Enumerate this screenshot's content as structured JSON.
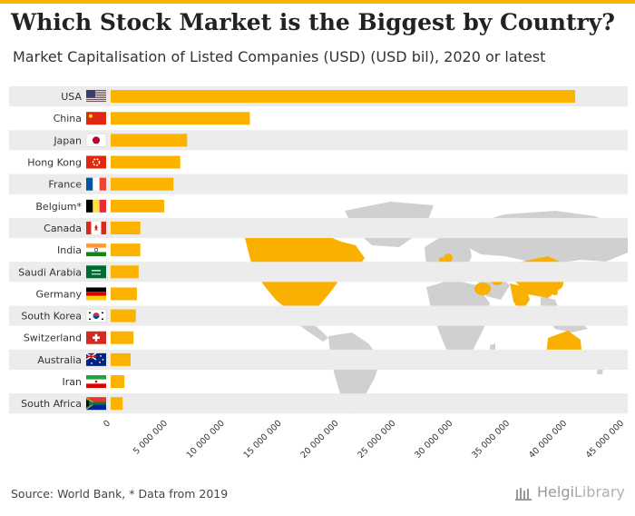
{
  "header": {
    "title": "Which Stock Market is the Biggest by Country?",
    "subtitle": "Market Capitalisation of Listed Companies (USD) (USD bil), 2020 or latest"
  },
  "footer": {
    "source": "Source: World Bank, * Data from 2019",
    "logo_brand": "Helgi",
    "logo_suffix": "Library"
  },
  "colors": {
    "bar": "#fbb300",
    "map_land": "#d0d0d0",
    "map_highlight": "#f9b000",
    "row_band": "#ececec",
    "accent": "#f5b400"
  },
  "chart_data": {
    "type": "bar",
    "orientation": "horizontal",
    "title": "Which Stock Market is the Biggest by Country?",
    "subtitle": "Market Capitalisation of Listed Companies (USD) (USD bil), 2020 or latest",
    "categories": [
      "USA",
      "China",
      "Japan",
      "Hong Kong",
      "France",
      "Belgium*",
      "Canada",
      "India",
      "Saudi Arabia",
      "Germany",
      "South Korea",
      "Switzerland",
      "Australia",
      "Iran",
      "South Africa"
    ],
    "values": [
      40700000,
      12200000,
      6700000,
      6100000,
      5500000,
      4700000,
      2600000,
      2600000,
      2450000,
      2300000,
      2200000,
      2000000,
      1750000,
      1200000,
      1050000
    ],
    "xlim": [
      0,
      45000000
    ],
    "xticks": [
      "0",
      "5 000 000",
      "10 000 000",
      "15 000 000",
      "20 000 000",
      "25 000 000",
      "30 000 000",
      "35 000 000",
      "40 000 000",
      "45 000 000"
    ],
    "xtick_values": [
      0,
      5000000,
      10000000,
      15000000,
      20000000,
      25000000,
      30000000,
      35000000,
      40000000,
      45000000
    ],
    "flags": [
      "us-flag-icon",
      "cn-flag-icon",
      "jp-flag-icon",
      "hk-flag-icon",
      "fr-flag-icon",
      "be-flag-icon",
      "ca-flag-icon",
      "in-flag-icon",
      "sa-flag-icon",
      "de-flag-icon",
      "kr-flag-icon",
      "ch-flag-icon",
      "au-flag-icon",
      "ir-flag-icon",
      "za-flag-icon"
    ],
    "grid": false,
    "legend": "none"
  }
}
